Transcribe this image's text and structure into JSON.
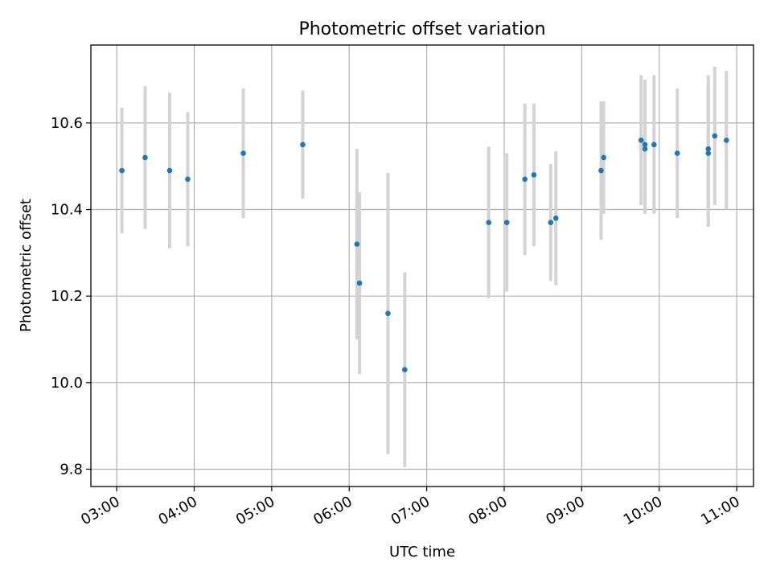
{
  "chart_data": {
    "type": "scatter",
    "title": "Photometric offset variation",
    "xlabel": "UTC time",
    "ylabel": "Photometric offset",
    "x_tick_labels": [
      "03:00",
      "04:00",
      "05:00",
      "06:00",
      "07:00",
      "08:00",
      "09:00",
      "10:00",
      "11:00"
    ],
    "y_tick_labels": [
      "9.8",
      "10.0",
      "10.2",
      "10.4",
      "10.6"
    ],
    "y_ticks": [
      9.8,
      10.0,
      10.2,
      10.4,
      10.6
    ],
    "xlim": [
      "02:40",
      "11:13"
    ],
    "ylim": [
      9.76,
      10.78
    ],
    "grid": true,
    "series": [
      {
        "x": [
          "03:04",
          "03:22",
          "03:41",
          "03:55",
          "04:38",
          "05:24",
          "06:06",
          "06:08",
          "06:30",
          "06:43",
          "07:48",
          "08:02",
          "08:16",
          "08:23",
          "08:36",
          "08:40",
          "09:15",
          "09:17",
          "09:46",
          "09:49",
          "09:49",
          "09:56",
          "10:14",
          "10:38",
          "10:38",
          "10:43",
          "10:52"
        ],
        "y": [
          10.49,
          10.52,
          10.49,
          10.47,
          10.53,
          10.55,
          10.32,
          10.23,
          10.16,
          10.03,
          10.37,
          10.37,
          10.47,
          10.48,
          10.37,
          10.38,
          10.49,
          10.52,
          10.56,
          10.55,
          10.54,
          10.55,
          10.53,
          10.54,
          10.53,
          10.57,
          10.56
        ],
        "err": [
          0.145,
          0.165,
          0.18,
          0.155,
          0.15,
          0.125,
          0.22,
          0.21,
          0.325,
          0.225,
          0.175,
          0.16,
          0.175,
          0.165,
          0.135,
          0.155,
          0.16,
          0.13,
          0.15,
          0.15,
          0.15,
          0.16,
          0.15,
          0.17,
          0.17,
          0.16,
          0.16
        ],
        "color": "#1f77b4",
        "errorbar_color": "#d3d3d3"
      }
    ]
  }
}
